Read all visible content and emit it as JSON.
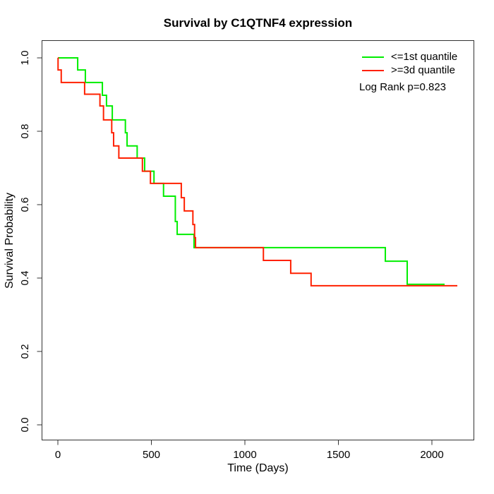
{
  "chart_data": {
    "type": "line",
    "subtype": "kaplan-meier-step",
    "title": "Survival by C1QTNF4 expression",
    "xlabel": "Time (Days)",
    "ylabel": "Survival Probability",
    "x_ticks": [
      0,
      500,
      1000,
      1500,
      2000
    ],
    "y_ticks": [
      "0.0",
      "0.2",
      "0.4",
      "0.6",
      "0.8",
      "1.0"
    ],
    "xlim": [
      0,
      2200
    ],
    "ylim": [
      0.0,
      1.0
    ],
    "grid": false,
    "legend_position": "top-right",
    "annotation": "Log Rank p=0.823",
    "series": [
      {
        "name": "<=1st quantile",
        "color": "#00ee00",
        "points": [
          [
            0,
            1.0
          ],
          [
            106,
            0.967
          ],
          [
            147,
            0.933
          ],
          [
            238,
            0.898
          ],
          [
            260,
            0.869
          ],
          [
            291,
            0.831
          ],
          [
            361,
            0.796
          ],
          [
            370,
            0.76
          ],
          [
            424,
            0.727
          ],
          [
            464,
            0.691
          ],
          [
            514,
            0.658
          ],
          [
            565,
            0.623
          ],
          [
            628,
            0.554
          ],
          [
            638,
            0.519
          ],
          [
            728,
            0.483
          ],
          [
            1751,
            0.446
          ],
          [
            1868,
            0.383
          ]
        ],
        "end_time": 2068
      },
      {
        "name": ">=3d quantile",
        "color": "#ff2000",
        "points": [
          [
            0,
            1.0
          ],
          [
            1,
            0.967
          ],
          [
            18,
            0.933
          ],
          [
            143,
            0.901
          ],
          [
            225,
            0.869
          ],
          [
            244,
            0.831
          ],
          [
            288,
            0.796
          ],
          [
            298,
            0.76
          ],
          [
            326,
            0.727
          ],
          [
            452,
            0.691
          ],
          [
            495,
            0.658
          ],
          [
            660,
            0.619
          ],
          [
            676,
            0.583
          ],
          [
            722,
            0.546
          ],
          [
            731,
            0.51
          ],
          [
            736,
            0.483
          ],
          [
            1099,
            0.448
          ],
          [
            1245,
            0.413
          ],
          [
            1354,
            0.379
          ]
        ],
        "end_time": 2136
      }
    ]
  }
}
